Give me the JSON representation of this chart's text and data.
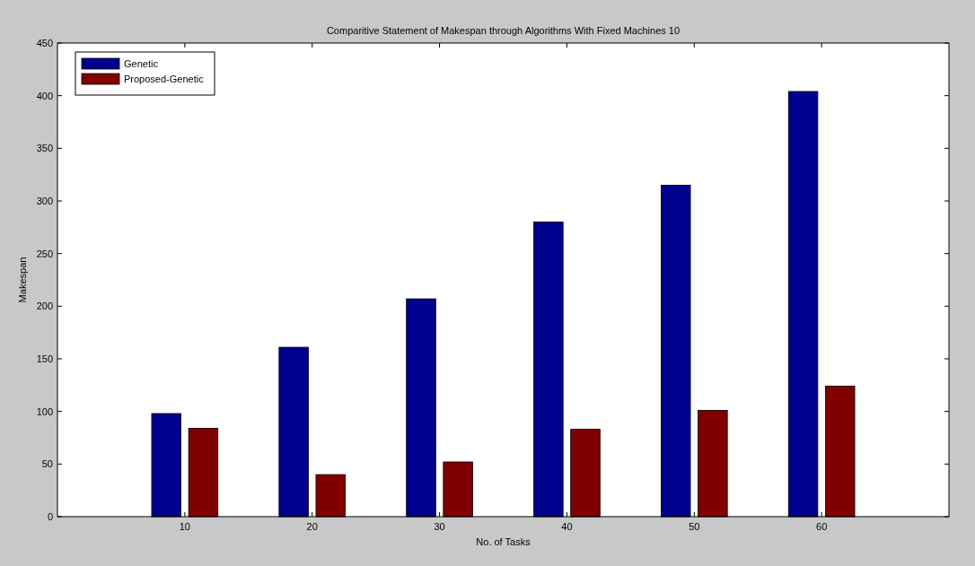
{
  "chart_data": {
    "type": "bar",
    "title": "Comparitive Statement of Makespan through Algorithms With Fixed Machines 10",
    "xlabel": "No. of Tasks",
    "ylabel": "Makespan",
    "categories": [
      "10",
      "20",
      "30",
      "40",
      "50",
      "60"
    ],
    "series": [
      {
        "name": "Genetic",
        "color": "#00008f",
        "values": [
          98,
          161,
          207,
          280,
          315,
          404
        ]
      },
      {
        "name": "Proposed-Genetic",
        "color": "#800000",
        "values": [
          84,
          40,
          52,
          83,
          101,
          124
        ]
      }
    ],
    "ylim": [
      0,
      450
    ],
    "yticks": [
      0,
      50,
      100,
      150,
      200,
      250,
      300,
      350,
      400,
      450
    ],
    "grid": false,
    "legend": "top left"
  }
}
